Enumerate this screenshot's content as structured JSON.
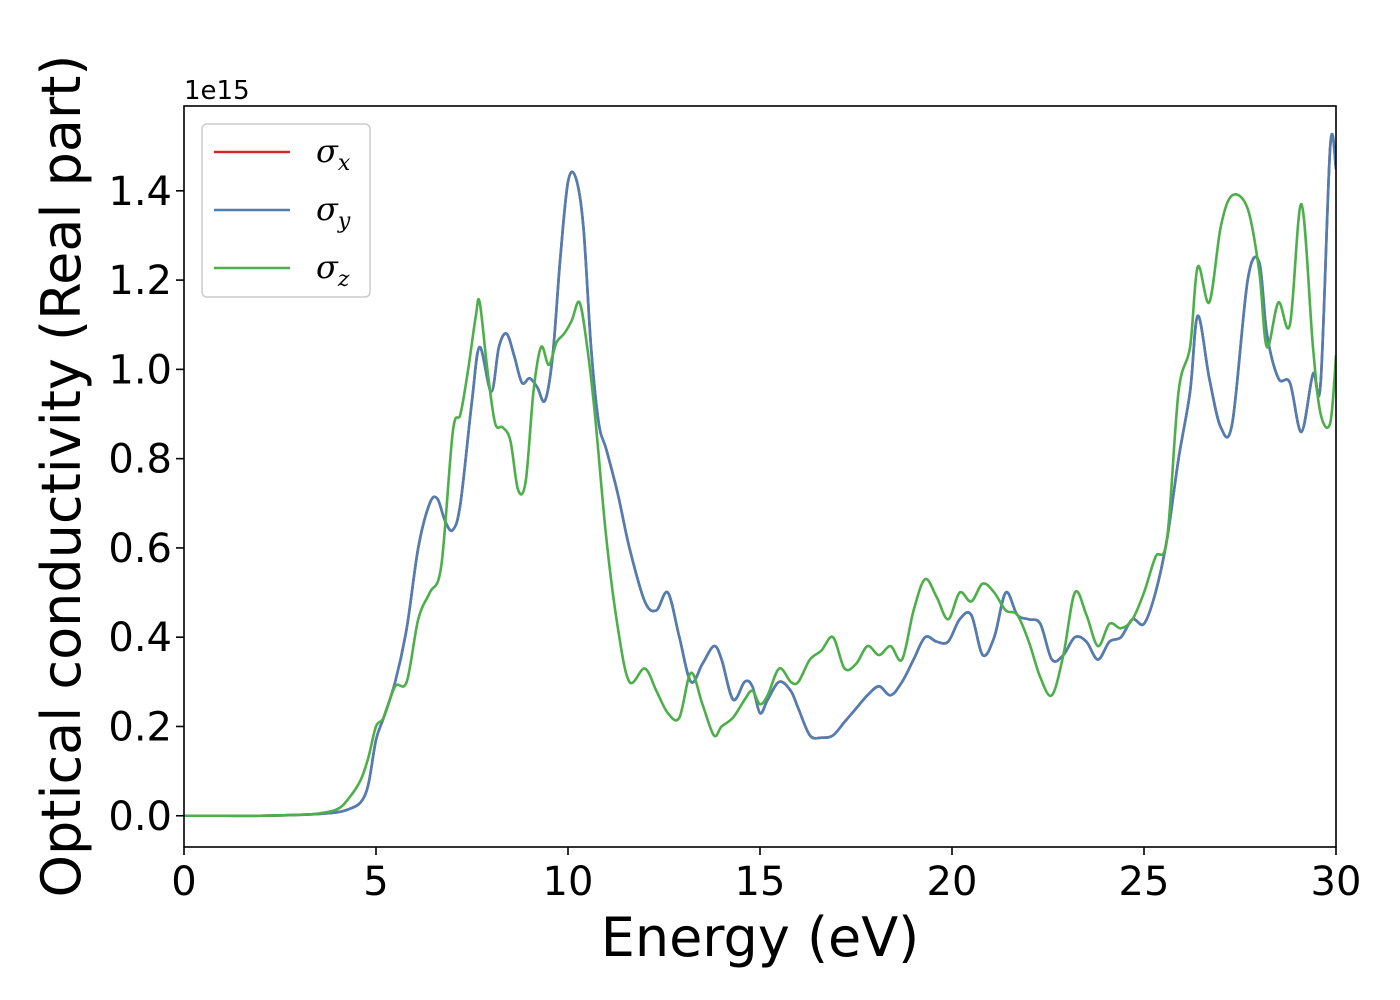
{
  "chart_data": {
    "type": "line",
    "xlabel": "Energy (eV)",
    "ylabel": "Optical conductivity (Real part)",
    "y_offset_label": "1e15",
    "xlim": [
      0,
      30
    ],
    "ylim": [
      -0.07,
      1.59
    ],
    "x_ticks": [
      0,
      5,
      10,
      15,
      20,
      25,
      30
    ],
    "x_tick_labels": [
      "0",
      "5",
      "10",
      "15",
      "20",
      "25",
      "30"
    ],
    "y_ticks": [
      0.0,
      0.2,
      0.4,
      0.6,
      0.8,
      1.0,
      1.2,
      1.4
    ],
    "y_tick_labels": [
      "0.0",
      "0.2",
      "0.4",
      "0.6",
      "0.8",
      "1.0",
      "1.2",
      "1.4"
    ],
    "grid": false,
    "legend_position": "top-left",
    "series": [
      {
        "name": "σx",
        "legend_symbol": "σ",
        "legend_subscript": "x",
        "color": "#d62728",
        "x": [
          0,
          1,
          2,
          3,
          3.5,
          4,
          4.3,
          4.6,
          4.8,
          5,
          5.2,
          5.5,
          5.8,
          6.1,
          6.4,
          6.6,
          6.8,
          7.0,
          7.2,
          7.5,
          7.7,
          8.0,
          8.2,
          8.4,
          8.6,
          8.8,
          9.0,
          9.2,
          9.4,
          9.6,
          9.8,
          10.0,
          10.2,
          10.4,
          10.6,
          10.8,
          11.0,
          11.3,
          11.6,
          12.0,
          12.3,
          12.6,
          12.9,
          13.2,
          13.5,
          13.8,
          14.0,
          14.3,
          14.6,
          14.8,
          15.0,
          15.2,
          15.5,
          15.8,
          16.0,
          16.3,
          16.6,
          16.9,
          17.2,
          17.5,
          17.8,
          18.1,
          18.4,
          18.7,
          19.0,
          19.3,
          19.6,
          19.9,
          20.2,
          20.5,
          20.8,
          21.1,
          21.4,
          21.7,
          22.0,
          22.3,
          22.6,
          22.9,
          23.2,
          23.5,
          23.8,
          24.1,
          24.4,
          24.7,
          25.0,
          25.3,
          25.6,
          25.9,
          26.2,
          26.4,
          26.7,
          27.0,
          27.3,
          27.7,
          28.0,
          28.2,
          28.5,
          28.8,
          29.1,
          29.4,
          29.6,
          29.85,
          30
        ],
        "values": [
          0,
          0,
          0,
          0.002,
          0.004,
          0.008,
          0.015,
          0.03,
          0.07,
          0.17,
          0.22,
          0.3,
          0.42,
          0.6,
          0.7,
          0.71,
          0.66,
          0.64,
          0.7,
          0.93,
          1.05,
          0.95,
          1.05,
          1.08,
          1.03,
          0.97,
          0.98,
          0.96,
          0.93,
          1.03,
          1.25,
          1.42,
          1.43,
          1.32,
          1.05,
          0.88,
          0.82,
          0.72,
          0.6,
          0.48,
          0.46,
          0.5,
          0.4,
          0.3,
          0.34,
          0.38,
          0.35,
          0.26,
          0.3,
          0.29,
          0.23,
          0.26,
          0.3,
          0.28,
          0.24,
          0.18,
          0.175,
          0.18,
          0.21,
          0.24,
          0.27,
          0.29,
          0.27,
          0.3,
          0.35,
          0.4,
          0.39,
          0.39,
          0.44,
          0.45,
          0.36,
          0.4,
          0.5,
          0.45,
          0.44,
          0.43,
          0.35,
          0.36,
          0.4,
          0.39,
          0.35,
          0.39,
          0.4,
          0.44,
          0.43,
          0.5,
          0.62,
          0.8,
          0.95,
          1.12,
          0.98,
          0.87,
          0.88,
          1.2,
          1.24,
          1.08,
          0.98,
          0.97,
          0.86,
          0.99,
          0.97,
          1.5,
          1.45
        ]
      },
      {
        "name": "σy",
        "legend_symbol": "σ",
        "legend_subscript": "y",
        "color": "#4e7fb4",
        "x": [
          0,
          1,
          2,
          3,
          3.5,
          4,
          4.3,
          4.6,
          4.8,
          5,
          5.2,
          5.5,
          5.8,
          6.1,
          6.4,
          6.6,
          6.8,
          7.0,
          7.2,
          7.5,
          7.7,
          8.0,
          8.2,
          8.4,
          8.6,
          8.8,
          9.0,
          9.2,
          9.4,
          9.6,
          9.8,
          10.0,
          10.2,
          10.4,
          10.6,
          10.8,
          11.0,
          11.3,
          11.6,
          12.0,
          12.3,
          12.6,
          12.9,
          13.2,
          13.5,
          13.8,
          14.0,
          14.3,
          14.6,
          14.8,
          15.0,
          15.2,
          15.5,
          15.8,
          16.0,
          16.3,
          16.6,
          16.9,
          17.2,
          17.5,
          17.8,
          18.1,
          18.4,
          18.7,
          19.0,
          19.3,
          19.6,
          19.9,
          20.2,
          20.5,
          20.8,
          21.1,
          21.4,
          21.7,
          22.0,
          22.3,
          22.6,
          22.9,
          23.2,
          23.5,
          23.8,
          24.1,
          24.4,
          24.7,
          25.0,
          25.3,
          25.6,
          25.9,
          26.2,
          26.4,
          26.7,
          27.0,
          27.3,
          27.7,
          28.0,
          28.2,
          28.5,
          28.8,
          29.1,
          29.4,
          29.6,
          29.85,
          30
        ],
        "values": [
          0,
          0,
          0,
          0.002,
          0.004,
          0.008,
          0.015,
          0.03,
          0.07,
          0.17,
          0.22,
          0.3,
          0.42,
          0.6,
          0.7,
          0.71,
          0.66,
          0.64,
          0.7,
          0.93,
          1.05,
          0.95,
          1.05,
          1.08,
          1.03,
          0.97,
          0.98,
          0.96,
          0.93,
          1.03,
          1.25,
          1.42,
          1.43,
          1.32,
          1.05,
          0.88,
          0.82,
          0.72,
          0.6,
          0.48,
          0.46,
          0.5,
          0.4,
          0.3,
          0.34,
          0.38,
          0.35,
          0.26,
          0.3,
          0.29,
          0.23,
          0.26,
          0.3,
          0.28,
          0.24,
          0.18,
          0.175,
          0.18,
          0.21,
          0.24,
          0.27,
          0.29,
          0.27,
          0.3,
          0.35,
          0.4,
          0.39,
          0.39,
          0.44,
          0.45,
          0.36,
          0.4,
          0.5,
          0.45,
          0.44,
          0.43,
          0.35,
          0.36,
          0.4,
          0.39,
          0.35,
          0.39,
          0.4,
          0.44,
          0.43,
          0.5,
          0.62,
          0.8,
          0.95,
          1.12,
          0.98,
          0.87,
          0.88,
          1.2,
          1.24,
          1.08,
          0.98,
          0.97,
          0.86,
          0.99,
          0.97,
          1.5,
          1.45
        ]
      },
      {
        "name": "σz",
        "legend_symbol": "σ",
        "legend_subscript": "z",
        "color": "#4daf4a",
        "x": [
          0,
          1,
          2,
          3,
          3.5,
          4,
          4.3,
          4.6,
          4.8,
          5,
          5.2,
          5.5,
          5.8,
          6.1,
          6.4,
          6.7,
          7.0,
          7.2,
          7.4,
          7.6,
          7.7,
          7.9,
          8.1,
          8.3,
          8.5,
          8.7,
          8.9,
          9.1,
          9.3,
          9.5,
          9.7,
          9.9,
          10.1,
          10.3,
          10.5,
          10.7,
          11.0,
          11.3,
          11.6,
          12.0,
          12.3,
          12.6,
          12.9,
          13.2,
          13.5,
          13.8,
          14.0,
          14.3,
          14.6,
          14.8,
          15.0,
          15.2,
          15.5,
          15.8,
          16.0,
          16.3,
          16.6,
          16.9,
          17.2,
          17.5,
          17.8,
          18.1,
          18.4,
          18.7,
          19.0,
          19.3,
          19.6,
          19.9,
          20.2,
          20.5,
          20.8,
          21.1,
          21.4,
          21.7,
          22.0,
          22.3,
          22.6,
          22.9,
          23.2,
          23.5,
          23.8,
          24.1,
          24.4,
          24.7,
          25.0,
          25.3,
          25.6,
          25.9,
          26.2,
          26.4,
          26.7,
          27.0,
          27.3,
          27.7,
          28.0,
          28.2,
          28.5,
          28.8,
          29.1,
          29.4,
          29.6,
          29.85,
          30
        ],
        "values": [
          0,
          0,
          0,
          0.002,
          0.005,
          0.015,
          0.04,
          0.08,
          0.13,
          0.2,
          0.22,
          0.29,
          0.3,
          0.44,
          0.5,
          0.56,
          0.86,
          0.9,
          1.0,
          1.12,
          1.15,
          1.0,
          0.88,
          0.87,
          0.84,
          0.73,
          0.75,
          0.95,
          1.05,
          1.01,
          1.06,
          1.08,
          1.11,
          1.15,
          1.05,
          0.9,
          0.62,
          0.42,
          0.3,
          0.33,
          0.28,
          0.23,
          0.22,
          0.32,
          0.25,
          0.18,
          0.2,
          0.22,
          0.26,
          0.28,
          0.25,
          0.27,
          0.33,
          0.3,
          0.3,
          0.35,
          0.37,
          0.4,
          0.33,
          0.34,
          0.38,
          0.36,
          0.38,
          0.35,
          0.46,
          0.53,
          0.49,
          0.44,
          0.5,
          0.48,
          0.52,
          0.5,
          0.46,
          0.45,
          0.39,
          0.31,
          0.27,
          0.36,
          0.5,
          0.45,
          0.38,
          0.43,
          0.42,
          0.44,
          0.5,
          0.58,
          0.62,
          0.95,
          1.05,
          1.23,
          1.15,
          1.32,
          1.39,
          1.36,
          1.22,
          1.05,
          1.15,
          1.1,
          1.37,
          1.05,
          0.9,
          0.88,
          1.03
        ]
      }
    ]
  }
}
